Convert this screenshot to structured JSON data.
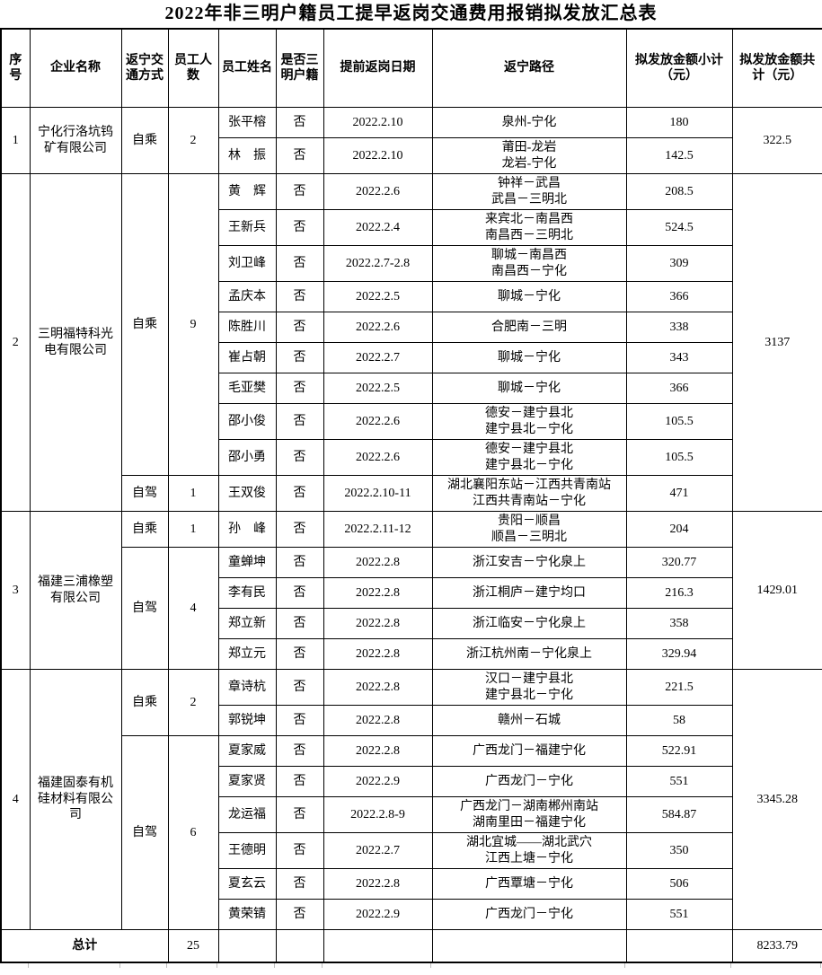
{
  "title": "2022年非三明户籍员工提早返岗交通费用报销拟发放汇总表",
  "columns": [
    "序号",
    "企业名称",
    "返宁交通方式",
    "员工人数",
    "员工姓名",
    "是否三明户籍",
    "提前返岗日期",
    "返宁路径",
    "拟发放金额小计（元）",
    "拟发放金额共计（元）"
  ],
  "companies": [
    {
      "index": "1",
      "name": "宁化行洛坑钨矿有限公司",
      "total": "322.5",
      "groups": [
        {
          "mode": "自乘",
          "count": "2",
          "employees": [
            {
              "name": "张平榕",
              "sanming": "否",
              "date": "2022.2.10",
              "route": [
                "泉州-宁化"
              ],
              "amount": "180"
            },
            {
              "name": "林　振",
              "sanming": "否",
              "date": "2022.2.10",
              "route": [
                "莆田-龙岩",
                "龙岩-宁化"
              ],
              "amount": "142.5"
            }
          ]
        }
      ]
    },
    {
      "index": "2",
      "name": "三明福特科光电有限公司",
      "total": "3137",
      "groups": [
        {
          "mode": "自乘",
          "count": "9",
          "employees": [
            {
              "name": "黄　辉",
              "sanming": "否",
              "date": "2022.2.6",
              "route": [
                "钟祥－武昌",
                "武昌－三明北"
              ],
              "amount": "208.5"
            },
            {
              "name": "王新兵",
              "sanming": "否",
              "date": "2022.2.4",
              "route": [
                "来宾北－南昌西",
                "南昌西－三明北"
              ],
              "amount": "524.5"
            },
            {
              "name": "刘卫峰",
              "sanming": "否",
              "date": "2022.2.7-2.8",
              "route": [
                "聊城－南昌西",
                "南昌西－宁化"
              ],
              "amount": "309"
            },
            {
              "name": "孟庆本",
              "sanming": "否",
              "date": "2022.2.5",
              "route": [
                "聊城－宁化"
              ],
              "amount": "366"
            },
            {
              "name": "陈胜川",
              "sanming": "否",
              "date": "2022.2.6",
              "route": [
                "合肥南－三明"
              ],
              "amount": "338"
            },
            {
              "name": "崔占朝",
              "sanming": "否",
              "date": "2022.2.7",
              "route": [
                "聊城－宁化"
              ],
              "amount": "343"
            },
            {
              "name": "毛亚樊",
              "sanming": "否",
              "date": "2022.2.5",
              "route": [
                "聊城－宁化"
              ],
              "amount": "366"
            },
            {
              "name": "邵小俊",
              "sanming": "否",
              "date": "2022.2.6",
              "route": [
                "德安－建宁县北",
                "建宁县北－宁化"
              ],
              "amount": "105.5"
            },
            {
              "name": "邵小勇",
              "sanming": "否",
              "date": "2022.2.6",
              "route": [
                "德安－建宁县北",
                "建宁县北－宁化"
              ],
              "amount": "105.5"
            }
          ]
        },
        {
          "mode": "自驾",
          "count": "1",
          "employees": [
            {
              "name": "王双俊",
              "sanming": "否",
              "date": "2022.2.10-11",
              "route": [
                "湖北襄阳东站－江西共青南站",
                "江西共青南站－宁化"
              ],
              "amount": "471"
            }
          ]
        }
      ]
    },
    {
      "index": "3",
      "name": "福建三浦橡塑有限公司",
      "total": "1429.01",
      "groups": [
        {
          "mode": "自乘",
          "count": "1",
          "employees": [
            {
              "name": "孙　峰",
              "sanming": "否",
              "date": "2022.2.11-12",
              "route": [
                "贵阳－顺昌",
                "顺昌－三明北"
              ],
              "amount": "204"
            }
          ]
        },
        {
          "mode": "自驾",
          "count": "4",
          "employees": [
            {
              "name": "童蝉坤",
              "sanming": "否",
              "date": "2022.2.8",
              "route": [
                "浙江安吉－宁化泉上"
              ],
              "amount": "320.77"
            },
            {
              "name": "李有民",
              "sanming": "否",
              "date": "2022.2.8",
              "route": [
                "浙江桐庐－建宁均口"
              ],
              "amount": "216.3"
            },
            {
              "name": "郑立新",
              "sanming": "否",
              "date": "2022.2.8",
              "route": [
                "浙江临安－宁化泉上"
              ],
              "amount": "358"
            },
            {
              "name": "郑立元",
              "sanming": "否",
              "date": "2022.2.8",
              "route": [
                "浙江杭州南－宁化泉上"
              ],
              "amount": "329.94"
            }
          ]
        }
      ]
    },
    {
      "index": "4",
      "name": "福建固泰有机硅材料有限公司",
      "total": "3345.28",
      "groups": [
        {
          "mode": "自乘",
          "count": "2",
          "employees": [
            {
              "name": "章诗杭",
              "sanming": "否",
              "date": "2022.2.8",
              "route": [
                "汉口－建宁县北",
                "建宁县北－宁化"
              ],
              "amount": "221.5"
            },
            {
              "name": "郭锐坤",
              "sanming": "否",
              "date": "2022.2.8",
              "route": [
                "赣州－石城"
              ],
              "amount": "58"
            }
          ]
        },
        {
          "mode": "自驾",
          "count": "6",
          "employees": [
            {
              "name": "夏家威",
              "sanming": "否",
              "date": "2022.2.8",
              "route": [
                "广西龙门－福建宁化"
              ],
              "amount": "522.91"
            },
            {
              "name": "夏家贤",
              "sanming": "否",
              "date": "2022.2.9",
              "route": [
                "广西龙门－宁化"
              ],
              "amount": "551"
            },
            {
              "name": "龙运福",
              "sanming": "否",
              "date": "2022.2.8-9",
              "route": [
                "广西龙门－湖南郴州南站",
                "湖南里田－福建宁化"
              ],
              "amount": "584.87"
            },
            {
              "name": "王德明",
              "sanming": "否",
              "date": "2022.2.7",
              "route": [
                "湖北宜城——湖北武穴",
                "江西上塘－宁化"
              ],
              "amount": "350"
            },
            {
              "name": "夏玄云",
              "sanming": "否",
              "date": "2022.2.8",
              "route": [
                "广西覃塘－宁化"
              ],
              "amount": "506"
            },
            {
              "name": "黄荣锖",
              "sanming": "否",
              "date": "2022.2.9",
              "route": [
                "广西龙门－宁化"
              ],
              "amount": "551"
            }
          ]
        }
      ]
    }
  ],
  "footer": {
    "label": "总计",
    "count": "25",
    "total": "8233.79"
  }
}
